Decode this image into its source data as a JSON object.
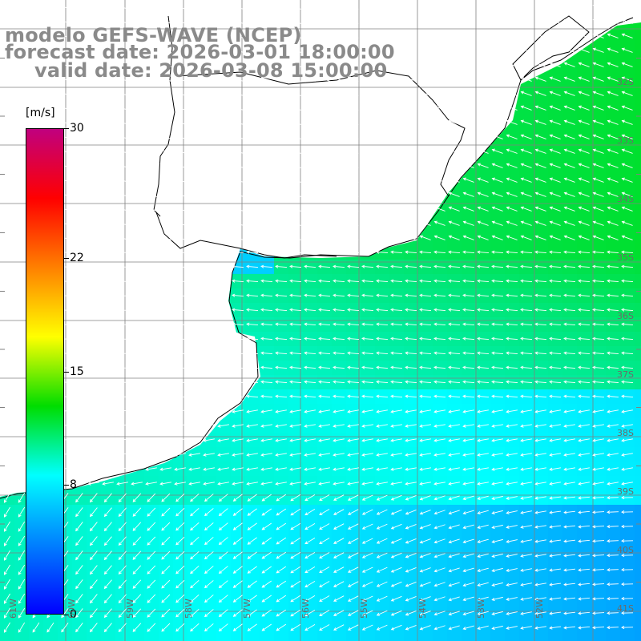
{
  "title": {
    "line1": "modelo GEFS-WAVE (NCEP)",
    "line2": "forecast date: 2026-03-01 18:00:00",
    "line3": "valid date: 2026-03-08 15:00:00"
  },
  "colorbar": {
    "unit": "[m/s]",
    "ticks": [
      "30",
      "22",
      "15",
      "8",
      "0"
    ],
    "tick_values": [
      30,
      22,
      15,
      8,
      0
    ],
    "colors": [
      "#c0007f",
      "#ff0000",
      "#ff8000",
      "#ffff00",
      "#00dd00",
      "#00ffff",
      "#0080ff",
      "#0000ff"
    ]
  },
  "map": {
    "land_color": "#ffffff",
    "grid_color": "#808080",
    "latitude_labels": [
      "32S",
      "33S",
      "34S",
      "35S",
      "36S",
      "37S",
      "38S",
      "39S",
      "40S",
      "41S"
    ],
    "longitude_labels": [
      "61W",
      "60W",
      "59W",
      "58W",
      "57W",
      "56W",
      "55W",
      "54W",
      "53W",
      "52W"
    ],
    "wind_field": "wind speed and direction arrows over ocean"
  }
}
